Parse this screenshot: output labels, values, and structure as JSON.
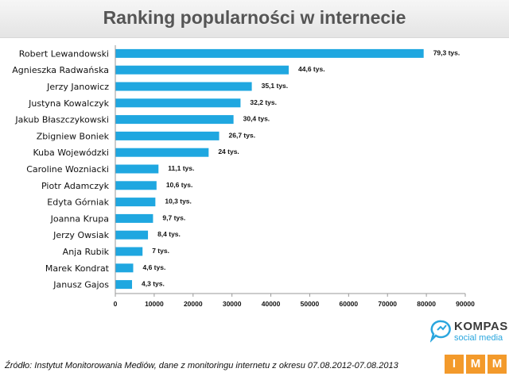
{
  "title": "Ranking popularności w internecie",
  "source": "Źródło: Instytut Monitorowania Mediów, dane z monitoringu internetu z okresu 07.08.2012-07.08.2013",
  "logos": {
    "kompas_name": "KOMPAS",
    "kompas_sub": "social media",
    "imm_letters": [
      "I",
      "M",
      "M"
    ]
  },
  "colors": {
    "bar": "#1fa7e0",
    "accent": "#f39a2b"
  },
  "chart_data": {
    "type": "bar",
    "orientation": "horizontal",
    "title": "Ranking popularności w internecie",
    "categories": [
      "Robert Lewandowski",
      "Agnieszka Radwańska",
      "Jerzy Janowicz",
      "Justyna Kowalczyk",
      "Jakub Błaszczykowski",
      "Zbigniew Boniek",
      "Kuba Wojewódzki",
      "Caroline Wozniacki",
      "Piotr Adamczyk",
      "Edyta Górniak",
      "Joanna Krupa",
      "Jerzy Owsiak",
      "Anja Rubik",
      "Marek Kondrat",
      "Janusz Gajos"
    ],
    "values": [
      79300,
      44600,
      35100,
      32200,
      30400,
      26700,
      24000,
      11100,
      10600,
      10300,
      9700,
      8400,
      7000,
      4600,
      4300
    ],
    "value_labels": [
      "79,3 tys.",
      "44,6 tys.",
      "35,1 tys.",
      "32,2 tys.",
      "30,4 tys.",
      "26,7 tys.",
      "24 tys.",
      "11,1 tys.",
      "10,6 tys.",
      "10,3 tys.",
      "9,7 tys.",
      "8,4 tys.",
      "7 tys.",
      "4,6 tys.",
      "4,3 tys."
    ],
    "xlim": [
      0,
      90000
    ],
    "xticks": [
      0,
      10000,
      20000,
      30000,
      40000,
      50000,
      60000,
      70000,
      80000,
      90000
    ],
    "xlabel": "",
    "ylabel": "",
    "grid": false,
    "legend": "none"
  }
}
